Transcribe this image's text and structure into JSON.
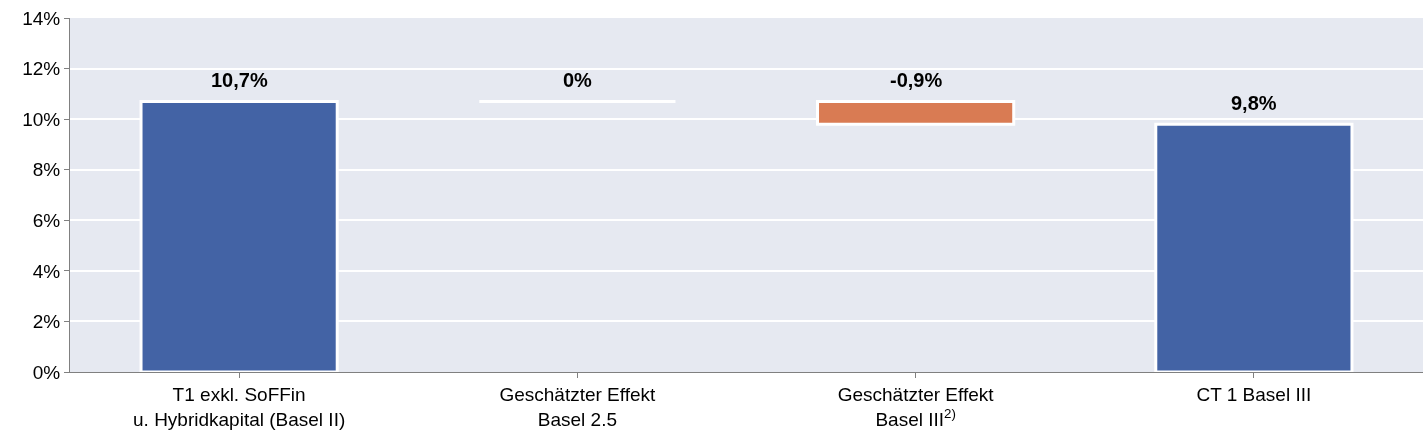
{
  "chart_data": {
    "type": "bar",
    "categories": [
      "T1 exkl. SoFFin\nu. Hybridkapital (Basel II)",
      "Geschätzter Effekt\nBasel 2.5",
      "Geschätzter Effekt\nBasel III$^{2)}$",
      "CT 1 Basel III"
    ],
    "values": [
      10.7,
      0,
      -0.9,
      9.8
    ],
    "base": [
      0,
      10.7,
      10.7,
      0
    ],
    "colors": [
      "#4363a5",
      "#ffffff",
      "#d97b53",
      "#4363a5"
    ],
    "value_labels": [
      "10,7%",
      "0%",
      "-0,9%",
      "9,8%"
    ],
    "ylim": [
      0,
      14
    ],
    "yticks": [
      {
        "value": 0,
        "label": "0%"
      },
      {
        "value": 2,
        "label": "2%"
      },
      {
        "value": 4,
        "label": "4%"
      },
      {
        "value": 6,
        "label": "6%"
      },
      {
        "value": 8,
        "label": "8%"
      },
      {
        "value": 10,
        "label": "10%"
      },
      {
        "value": 12,
        "label": "12%"
      },
      {
        "value": 14,
        "label": "14%"
      }
    ],
    "grid": "y",
    "legend": false
  }
}
